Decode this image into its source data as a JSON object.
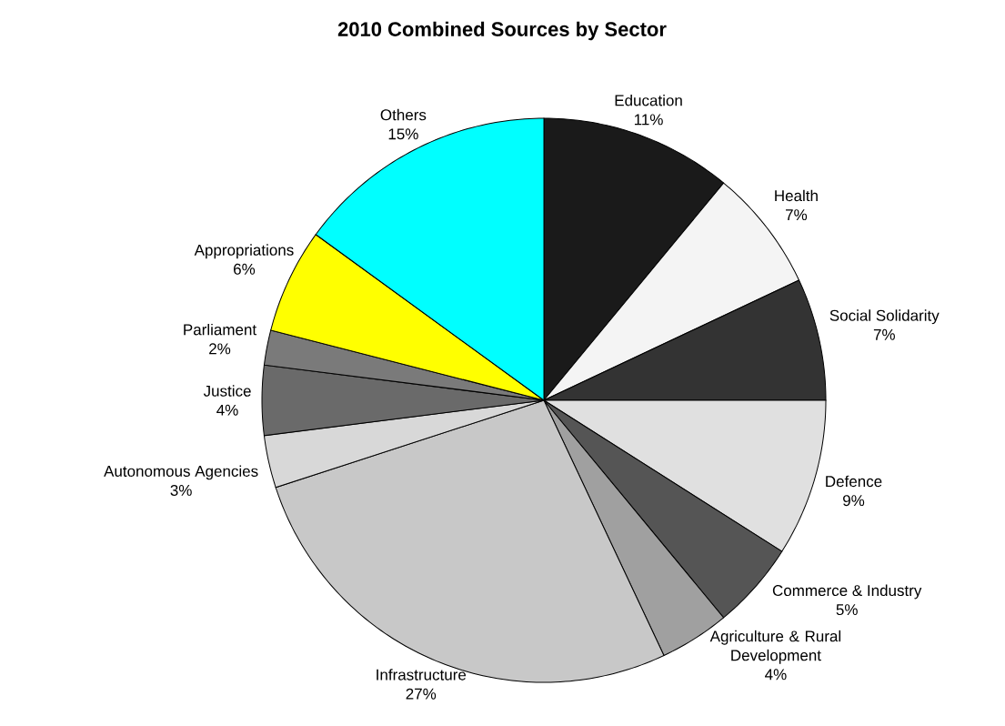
{
  "chart_data": {
    "type": "pie",
    "title": "2010 Combined Sources by Sector",
    "categories": [
      "Education",
      "Health",
      "Social Solidarity",
      "Defence",
      "Commerce & Industry",
      "Agriculture & Rural Development",
      "Infrastructure",
      "Autonomous Agencies",
      "Justice",
      "Parliament",
      "Appropriations",
      "Others"
    ],
    "values": [
      11,
      7,
      7,
      9,
      5,
      4,
      27,
      3,
      4,
      2,
      6,
      15
    ],
    "value_labels": [
      "11%",
      "7%",
      "7%",
      "9%",
      "5%",
      "4%",
      "27%",
      "3%",
      "4%",
      "2%",
      "6%",
      "15%"
    ],
    "colors": [
      "#1a1a1a",
      "#f4f4f4",
      "#333333",
      "#e0e0e0",
      "#555555",
      "#a0a0a0",
      "#c8c8c8",
      "#d8d8d8",
      "#6a6a6a",
      "#7a7a7a",
      "#ffff00",
      "#00ffff"
    ]
  }
}
